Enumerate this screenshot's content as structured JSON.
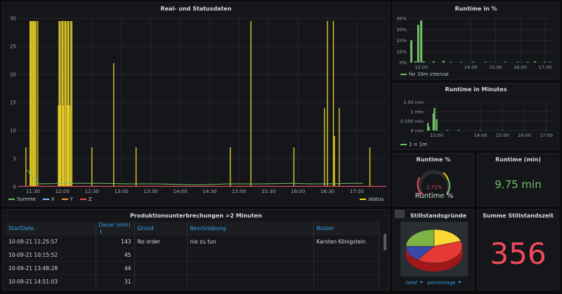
{
  "colors": {
    "summe": "#73bf69",
    "x": "#8ab8ff",
    "y": "#f2cc0c",
    "z": "#f2495c",
    "status": "#fade2a",
    "runtime_pct": "#73bf69",
    "total_red": "#f2495c",
    "gauge_green": "#73bf69"
  },
  "main_panel": {
    "title": "Real- und Statusdaten",
    "legend_left": [
      {
        "label": "Summe",
        "color": "#73bf69"
      },
      {
        "label": "X",
        "color": "#8ab8ff"
      },
      {
        "label": "Y",
        "color": "#ff9830"
      },
      {
        "label": "Z",
        "color": "#f2495c"
      }
    ],
    "legend_right": {
      "label": "status",
      "color": "#fade2a"
    },
    "chart_data": {
      "type": "bar",
      "x_ticks": [
        "11:30",
        "12:00",
        "12:30",
        "13:00",
        "13:30",
        "14:00",
        "14:30",
        "15:00",
        "15:30",
        "16:00",
        "16:30",
        "17:00"
      ],
      "y_ticks": [
        "0",
        "5",
        "10",
        "15",
        "20",
        "25",
        "30"
      ],
      "ylim": [
        0,
        30
      ],
      "xlim_hours": [
        11.25,
        17.5
      ],
      "series": [
        {
          "name": "status",
          "x": [
            11.38,
            11.45,
            11.47,
            11.5,
            11.52,
            11.55,
            11.58,
            11.93,
            11.95,
            11.97,
            12.0,
            12.02,
            12.05,
            12.08,
            12.1,
            12.12,
            12.14,
            12.16,
            12.5,
            12.87,
            13.25,
            14.85,
            15.2,
            15.93,
            16.45,
            16.5,
            16.6,
            16.62,
            16.7,
            17.22
          ],
          "values": [
            7,
            29.5,
            29.5,
            29.5,
            29.5,
            29.5,
            29.5,
            14.5,
            29.5,
            14.5,
            29.5,
            14.5,
            29.5,
            14.5,
            29.5,
            14.5,
            29.5,
            29.5,
            7,
            22,
            7,
            7,
            29.5,
            7,
            14,
            29.5,
            29.5,
            9,
            14,
            7
          ]
        },
        {
          "name": "Summe",
          "x": [
            11.4,
            11.55,
            11.6,
            12.15,
            12.7,
            13.1,
            13.6,
            14.3,
            14.8,
            15.4,
            15.9,
            16.2,
            16.5,
            16.9,
            17.1
          ],
          "values": [
            3,
            0.8,
            0.5,
            0.6,
            0.6,
            0.5,
            0.5,
            0.3,
            0.5,
            0.5,
            0.6,
            0.5,
            0.5,
            0.6,
            0.6
          ]
        }
      ]
    }
  },
  "runtime_pct": {
    "title": "Runtime in %",
    "legend": "for 10m interval",
    "chart_data": {
      "type": "bar",
      "y_ticks": [
        "0%",
        "10%",
        "20%",
        "30%",
        "40%"
      ],
      "x_ticks": [
        "12:00",
        "14:00",
        "15:00",
        "16:00",
        "17:00"
      ],
      "ylim": [
        0,
        40
      ],
      "xlim_hours": [
        11.5,
        17.4
      ],
      "x": [
        11.6,
        11.77,
        11.88,
        12.0,
        12.1,
        12.5,
        12.9,
        13.2,
        13.6,
        14.1,
        14.6,
        15.0,
        15.4,
        15.9,
        16.3,
        16.6,
        17.0,
        17.2
      ],
      "values": [
        20,
        1,
        34,
        38,
        1,
        1,
        1.5,
        0.5,
        0.5,
        0.5,
        0.5,
        0.3,
        0.5,
        0.5,
        0.5,
        1,
        0.5,
        0.5
      ]
    }
  },
  "runtime_min": {
    "title": "Runtime in Minutes",
    "legend": "1 = 1m",
    "chart_data": {
      "type": "bar",
      "y_ticks": [
        "0 min",
        "0.500 min",
        "1 min",
        "1.50 min"
      ],
      "x_ticks": [
        "12:00",
        "14:00",
        "15:00",
        "16:00",
        "17:00"
      ],
      "ylim": [
        0,
        1.6
      ],
      "xlim_hours": [
        11.5,
        17.4
      ],
      "x": [
        11.6,
        11.65,
        11.85,
        11.9,
        12.0,
        12.5,
        13.0,
        14.0,
        15.0,
        16.0,
        17.0
      ],
      "values": [
        0.4,
        0.2,
        0.9,
        1.2,
        0.6,
        0.04,
        0.04,
        0.02,
        0.02,
        0.02,
        0.02
      ]
    }
  },
  "gauge": {
    "title": "Runtime %",
    "value_text": "2.71%",
    "label": "Runtime %",
    "value": 2.71
  },
  "runtime_stat": {
    "title": "Runtime (min)",
    "value": "9.75 min"
  },
  "table": {
    "title": "Produktionsunterbrechungen >2 Minuten",
    "columns": [
      "StartDate",
      "Dauer (min)",
      "Grund",
      "Beschreibung",
      "Nutzer"
    ],
    "sort_indicator": "↓",
    "rows": [
      [
        "10-09-21 11:25:57",
        "143",
        "No order",
        "nix zu tun",
        "Karsten Königstein"
      ],
      [
        "10-09-21 10:15:52",
        "45",
        "",
        "",
        ""
      ],
      [
        "10-09-21 13:48:28",
        "44",
        "",
        "",
        ""
      ],
      [
        "10-09-21 14:51:03",
        "31",
        "",
        "",
        ""
      ]
    ]
  },
  "pie": {
    "title": "Stillstandsgründe",
    "legend_total": "total",
    "legend_pct": "percentage",
    "chart_data": {
      "type": "pie",
      "slices": [
        {
          "color": "#e53935",
          "value": 40
        },
        {
          "color": "#3949ab",
          "value": 15
        },
        {
          "color": "#7cb342",
          "value": 25
        },
        {
          "color": "#fdd835",
          "value": 20
        }
      ]
    }
  },
  "total": {
    "title": "Summe Stillstandszeit",
    "value": "356"
  }
}
